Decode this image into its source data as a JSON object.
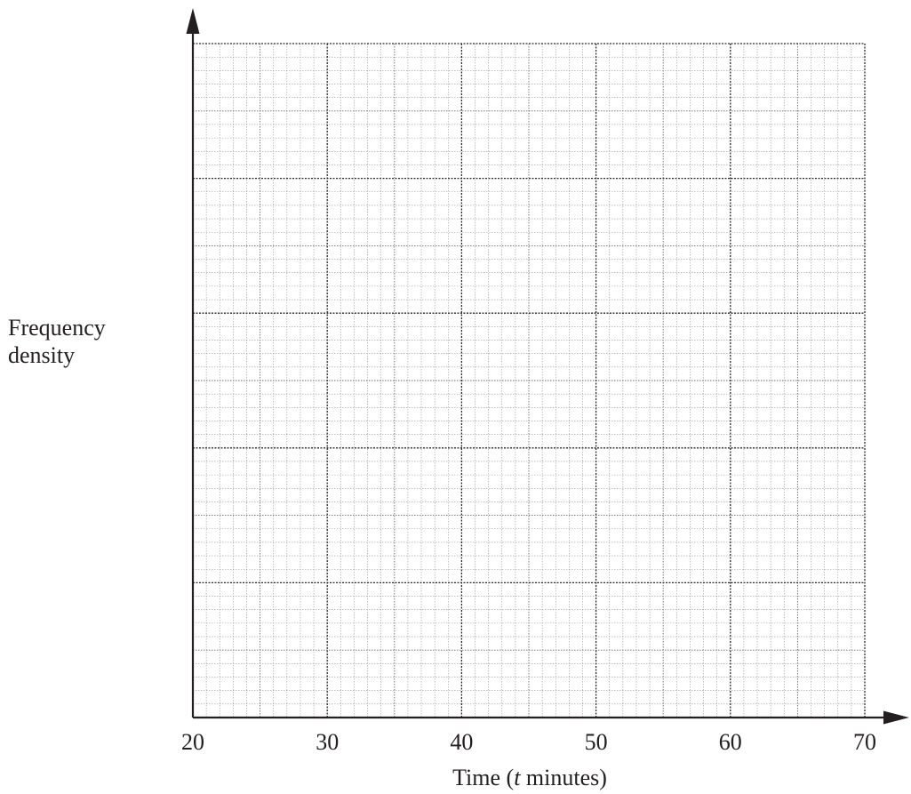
{
  "chart_data": {
    "type": "histogram",
    "title": "",
    "xlabel_prefix": "Time (",
    "xlabel_var": "t",
    "xlabel_suffix": " minutes)",
    "ylabel_line1": "Frequency",
    "ylabel_line2": "density",
    "xlim": [
      20,
      70
    ],
    "x_ticks": [
      "20",
      "30",
      "40",
      "50",
      "60",
      "70"
    ],
    "y_ticks": [],
    "grid": true,
    "series": []
  }
}
